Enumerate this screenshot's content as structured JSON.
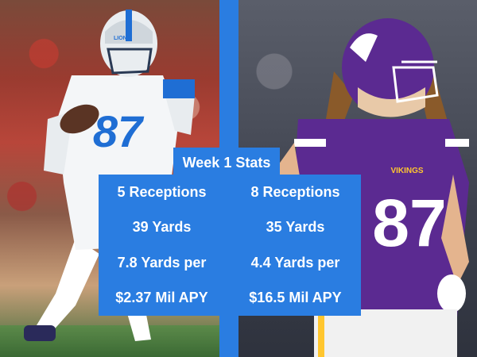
{
  "header": {
    "title": "Week 1 Stats"
  },
  "stats": {
    "left": [
      "5 Receptions",
      "39 Yards",
      "7.8 Yards per",
      "$2.37 Mil APY"
    ],
    "right": [
      "8 Receptions",
      "35 Yards",
      "4.4 Yards per",
      "$16.5 Mil APY"
    ]
  },
  "players": {
    "left": {
      "team": "Lions",
      "helmet_text": "LIONS",
      "jersey_number": "87"
    },
    "right": {
      "team": "Vikings",
      "jersey_text": "VIKINGS",
      "jersey_number": "87"
    }
  },
  "colors": {
    "accent": "#2a7de1",
    "lions_blue": "#1f6ed4",
    "vikings_purple": "#5b2a91",
    "vikings_gold": "#ffc62f"
  }
}
